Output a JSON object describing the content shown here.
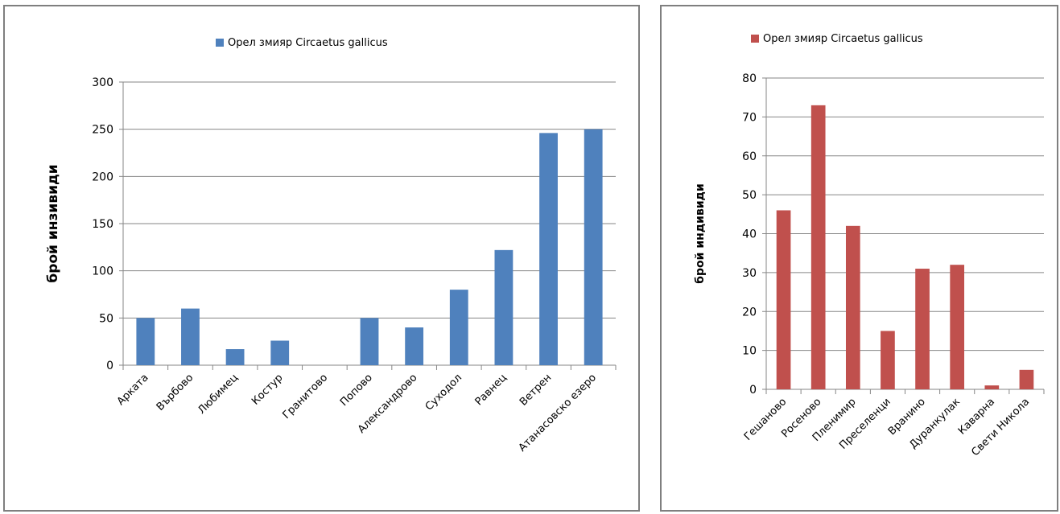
{
  "chart_data": [
    {
      "type": "bar",
      "title": "",
      "legend": "top",
      "series": [
        {
          "name": "Орел змияр Circaetus gallicus",
          "color": "#4f81bd",
          "values": [
            50,
            60,
            17,
            26,
            0,
            50,
            40,
            80,
            122,
            246,
            250
          ]
        }
      ],
      "categories": [
        "Арката",
        "Върбово",
        "Любимец",
        "Костур",
        "Гранитово",
        "Попово",
        "Александрово",
        "Суходол",
        "Равнец",
        "Ветрен",
        "Атанасовско езеро"
      ],
      "xlabel": "",
      "ylabel": "брой инзивиди",
      "ylim": [
        0,
        300
      ],
      "yticks": [
        0,
        50,
        100,
        150,
        200,
        250,
        300
      ],
      "grid": true
    },
    {
      "type": "bar",
      "title": "",
      "legend": "top",
      "series": [
        {
          "name": "Орел змияр Circaetus gallicus",
          "color": "#c0504d",
          "values": [
            46,
            73,
            42,
            15,
            31,
            32,
            1,
            5
          ]
        }
      ],
      "categories": [
        "Гешаново",
        "Росеново",
        "Пленимир",
        "Преселенци",
        "Вранино",
        "Дуранкулак",
        "Каварна",
        "Свети Никола"
      ],
      "xlabel": "",
      "ylabel": "брой индивиди",
      "ylim": [
        0,
        80
      ],
      "yticks": [
        0,
        10,
        20,
        30,
        40,
        50,
        60,
        70,
        80
      ],
      "grid": true
    }
  ]
}
